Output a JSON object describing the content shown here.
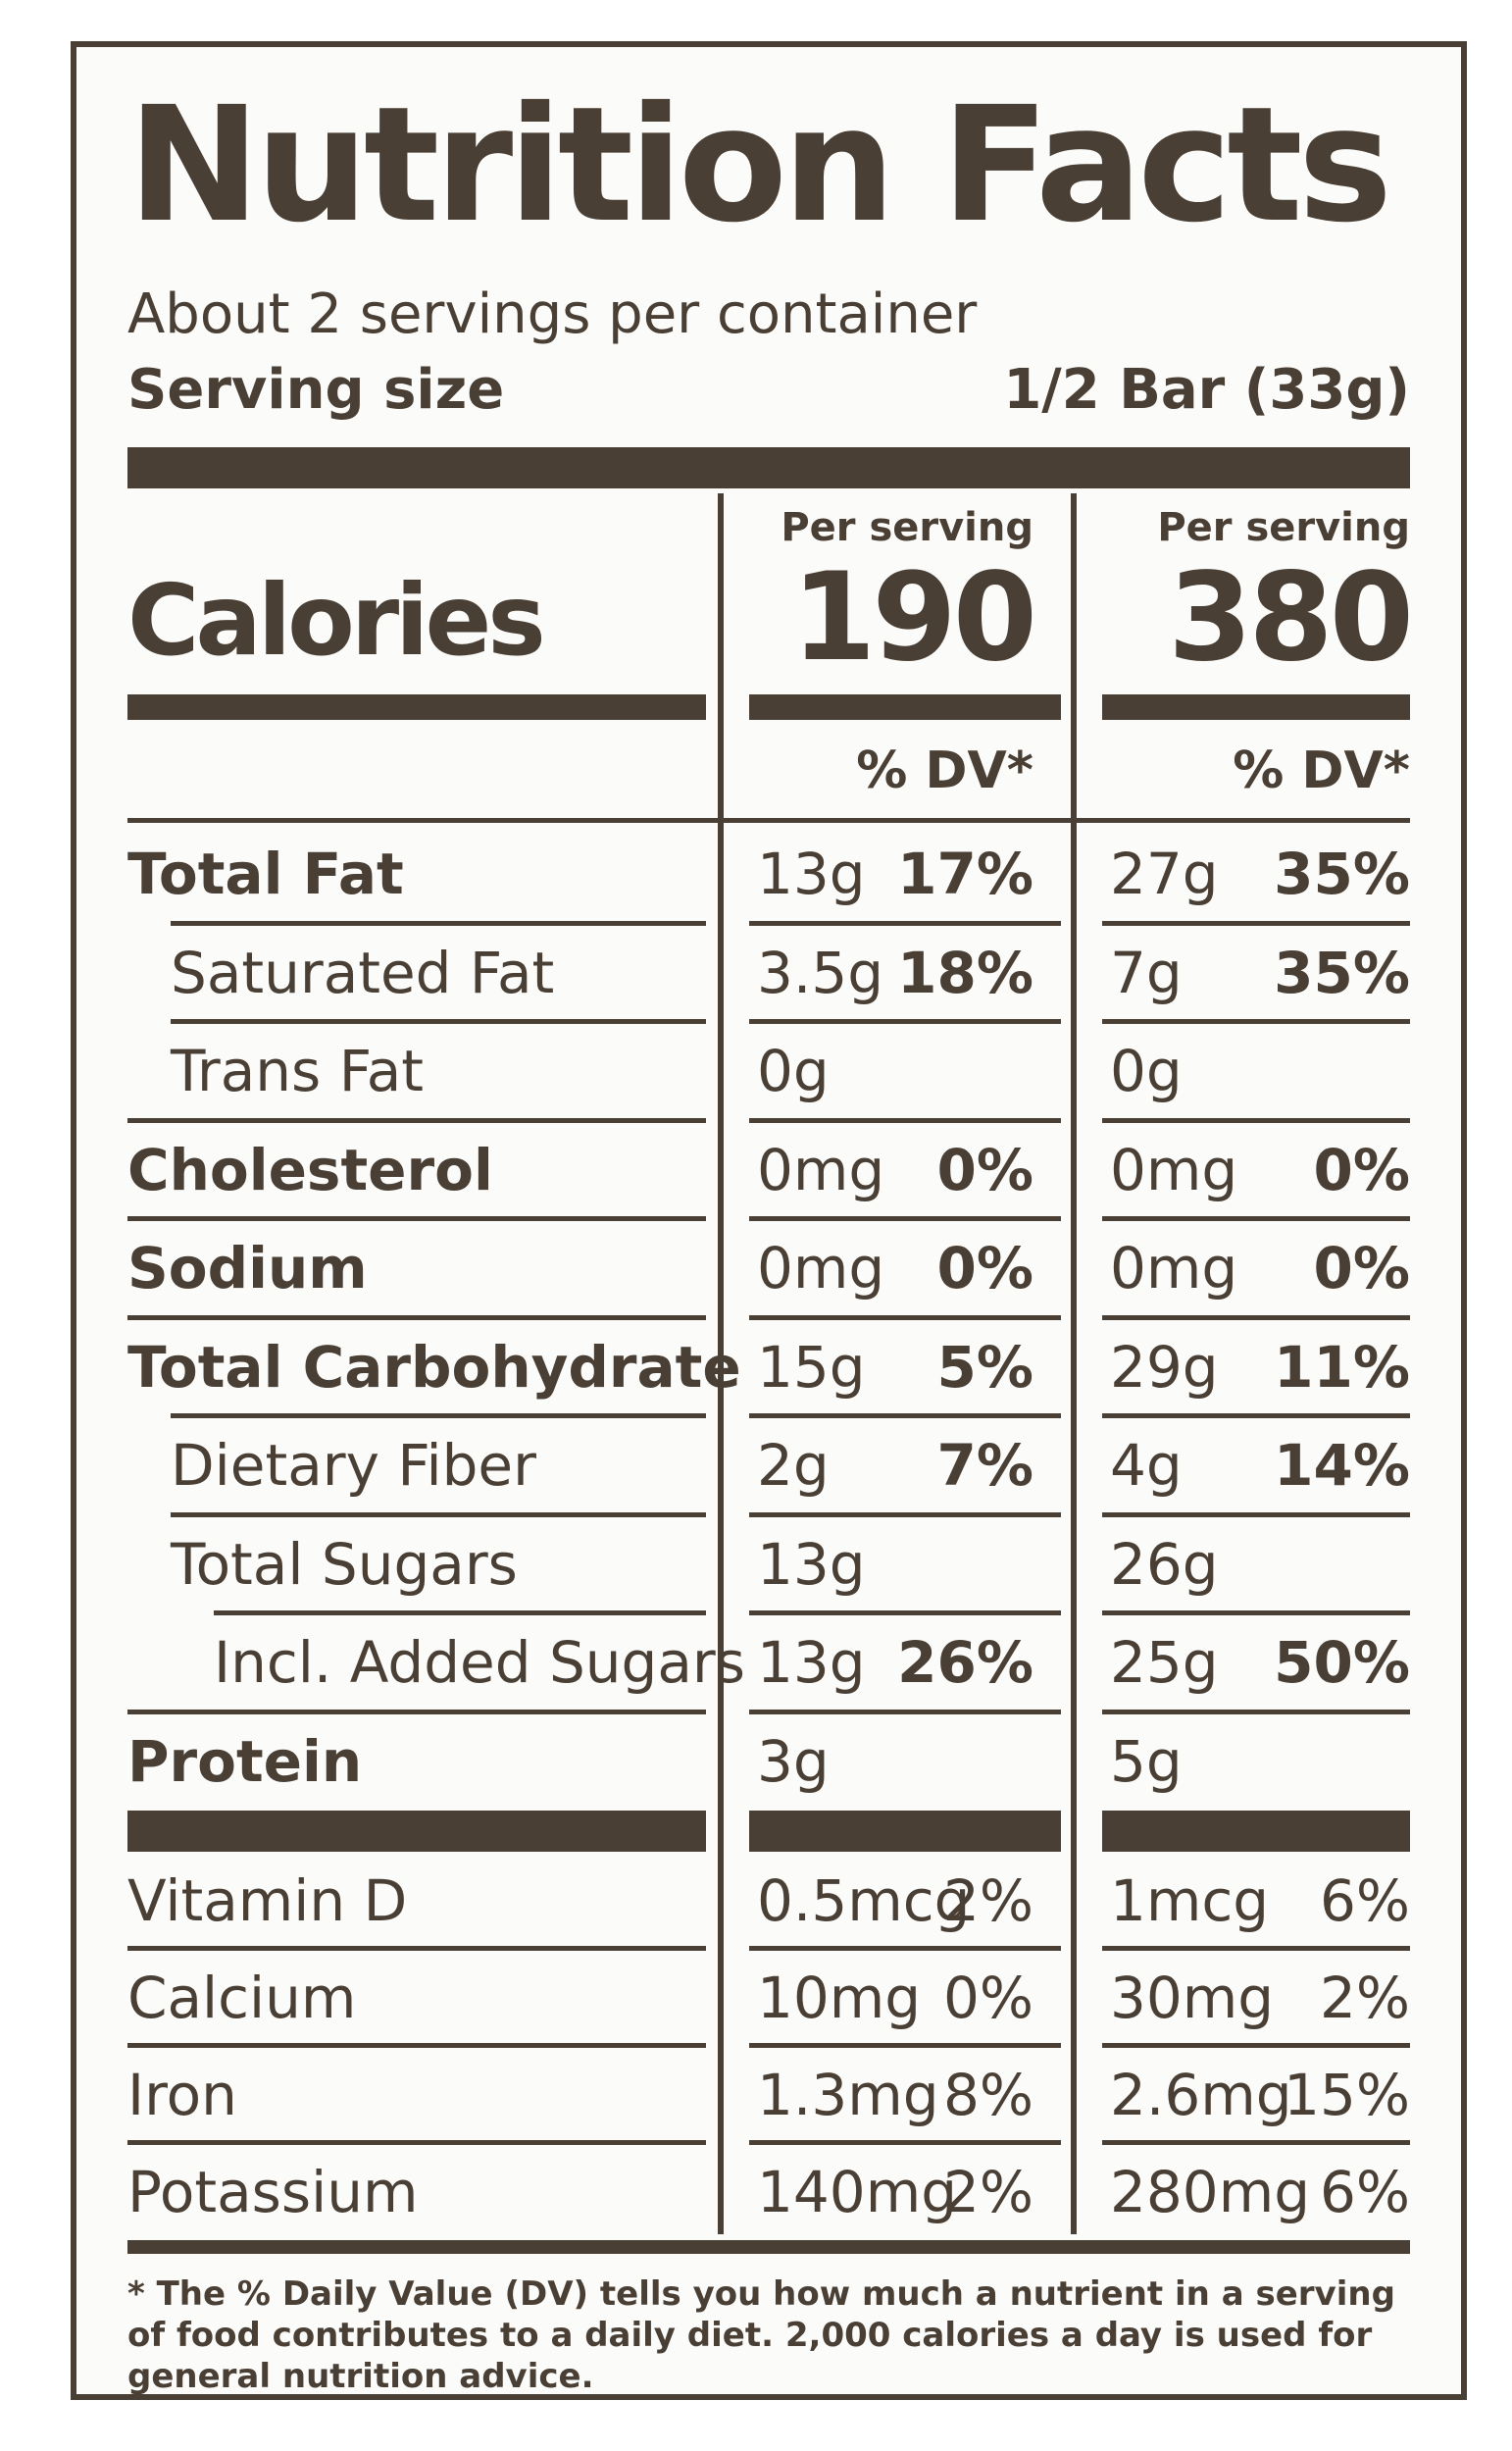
{
  "label": {
    "title": "Nutrition Facts",
    "servings_per_container": "About 2 servings per container",
    "serving_size_label": "Serving size",
    "serving_size_value": "1/2 Bar (33g)",
    "calories_label": "Calories",
    "columns": [
      {
        "header": "Per serving",
        "calories": "190",
        "dv_header": "% DV*"
      },
      {
        "header": "Per serving",
        "calories": "380",
        "dv_header": "% DV*"
      }
    ],
    "nutrients": [
      {
        "name": "Total Fat",
        "style": "bold",
        "col1_amount": "13g",
        "col1_dv": "17%",
        "col2_amount": "27g",
        "col2_dv": "35%"
      },
      {
        "name": "Saturated Fat",
        "style": "indent1",
        "col1_amount": "3.5g",
        "col1_dv": "18%",
        "col2_amount": "7g",
        "col2_dv": "35%"
      },
      {
        "name_italic": "Trans",
        "name_rest": " Fat",
        "style": "indent1",
        "col1_amount": "0g",
        "col1_dv": "",
        "col2_amount": "0g",
        "col2_dv": ""
      },
      {
        "name": "Cholesterol",
        "style": "bold",
        "col1_amount": "0mg",
        "col1_dv": "0%",
        "col2_amount": "0mg",
        "col2_dv": "0%"
      },
      {
        "name": "Sodium",
        "style": "bold",
        "col1_amount": "0mg",
        "col1_dv": "0%",
        "col2_amount": "0mg",
        "col2_dv": "0%"
      },
      {
        "name": "Total Carbohydrate",
        "style": "bold",
        "col1_amount": "15g",
        "col1_dv": "5%",
        "col2_amount": "29g",
        "col2_dv": "11%"
      },
      {
        "name": "Dietary Fiber",
        "style": "indent1",
        "col1_amount": "2g",
        "col1_dv": "7%",
        "col2_amount": "4g",
        "col2_dv": "14%"
      },
      {
        "name": "Total Sugars",
        "style": "indent1",
        "col1_amount": "13g",
        "col1_dv": "",
        "col2_amount": "26g",
        "col2_dv": ""
      },
      {
        "name": "Incl. Added Sugars",
        "style": "indent2",
        "col1_amount": "13g",
        "col1_dv": "26%",
        "col2_amount": "25g",
        "col2_dv": "50%"
      },
      {
        "name": "Protein",
        "style": "bold",
        "col1_amount": "3g",
        "col1_dv": "",
        "col2_amount": "5g",
        "col2_dv": ""
      }
    ],
    "vitamins": [
      {
        "name": "Vitamin D",
        "col1_amount": "0.5mcg",
        "col1_dv": "2%",
        "col2_amount": "1mcg",
        "col2_dv": "6%"
      },
      {
        "name": "Calcium",
        "col1_amount": "10mg",
        "col1_dv": "0%",
        "col2_amount": "30mg",
        "col2_dv": "2%"
      },
      {
        "name": "Iron",
        "col1_amount": "1.3mg",
        "col1_dv": "8%",
        "col2_amount": "2.6mg",
        "col2_dv": "15%"
      },
      {
        "name": "Potassium",
        "col1_amount": "140mg",
        "col1_dv": "2%",
        "col2_amount": "280mg",
        "col2_dv": "6%"
      }
    ],
    "footnote": "* The % Daily Value (DV) tells you how much a nutrient in a serving of food contributes to a daily diet. 2,000 calories a day is used for general nutrition advice.",
    "colors": {
      "ink": "#4a3f35",
      "background": "#fbfbfa"
    }
  }
}
